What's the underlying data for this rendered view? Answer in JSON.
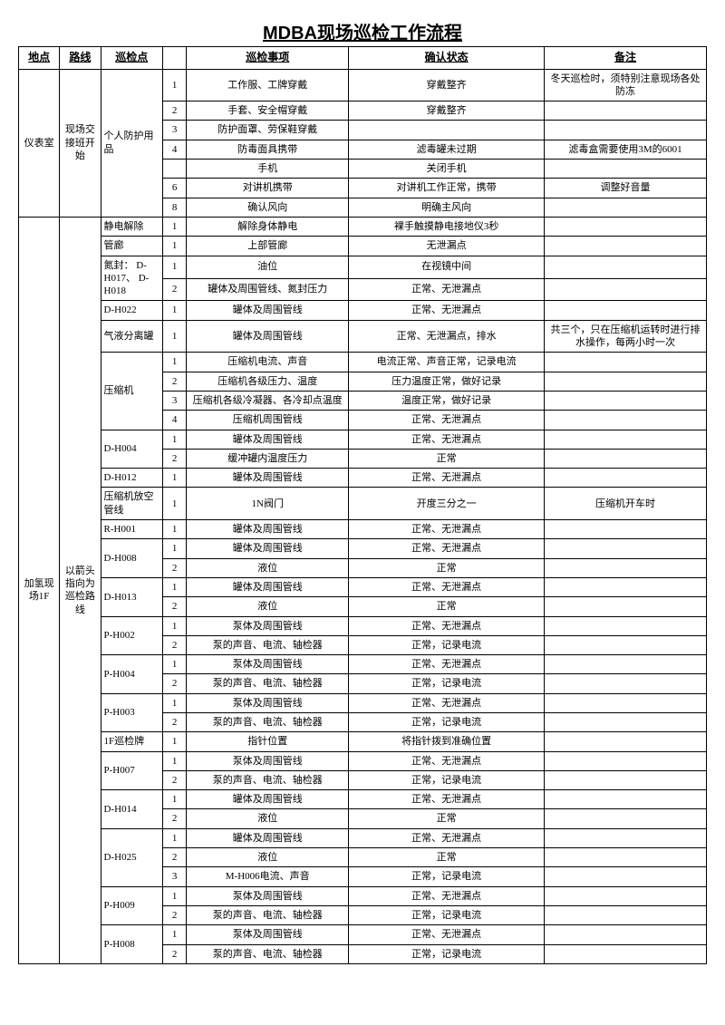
{
  "title": "MDBA现场巡检工作流程",
  "headers": [
    "地点",
    "路线",
    "巡检点",
    "",
    "巡检事项",
    "确认状态",
    "备注"
  ],
  "sections": [
    {
      "loc": "仪表室",
      "route": "现场交接班开始",
      "groups": [
        {
          "point": "个人防护用品",
          "rows": [
            {
              "n": "1",
              "item": "工作服、工牌穿戴",
              "status": "穿戴整齐",
              "note": "冬天巡检时，须特别注意现场各处防冻"
            },
            {
              "n": "2",
              "item": "手套、安全帽穿戴",
              "status": "穿戴整齐",
              "note": ""
            },
            {
              "n": "3",
              "item": "防护面罩、劳保鞋穿戴",
              "status": "",
              "note": ""
            },
            {
              "n": "4",
              "item": "防毒面具携带",
              "status": "滤毒罐未过期",
              "note": "滤毒盒需要使用3M的6001"
            },
            {
              "n": "",
              "item": "手机",
              "status": "关闭手机",
              "note": ""
            },
            {
              "n": "6",
              "item": "对讲机携带",
              "status": "对讲机工作正常，携带",
              "note": "调整好音量"
            },
            {
              "n": "8",
              "item": "确认风向",
              "status": "明确主风向",
              "note": ""
            }
          ]
        }
      ]
    },
    {
      "loc": "加氢现场1F",
      "route": "以箭头指向为巡检路线",
      "groups": [
        {
          "point": "静电解除",
          "rows": [
            {
              "n": "1",
              "item": "解除身体静电",
              "status": "裸手触摸静电接地仪3秒",
              "note": ""
            }
          ]
        },
        {
          "point": "管廊",
          "rows": [
            {
              "n": "1",
              "item": "上部管廊",
              "status": "无泄漏点",
              "note": ""
            }
          ]
        },
        {
          "point": "氮封：     D-H017、   D-H018",
          "rows": [
            {
              "n": "1",
              "item": "油位",
              "status": "在视镜中间",
              "note": ""
            },
            {
              "n": "2",
              "item": "罐体及周围管线、氮封压力",
              "status": "正常、无泄漏点",
              "note": ""
            }
          ]
        },
        {
          "point": "D-H022",
          "rows": [
            {
              "n": "1",
              "item": "罐体及周围管线",
              "status": "正常、无泄漏点",
              "note": ""
            }
          ]
        },
        {
          "point": "气液分离罐",
          "rows": [
            {
              "n": "1",
              "item": "罐体及周围管线",
              "status": "正常、无泄漏点，排水",
              "note": "共三个，只在压缩机运转时进行排水操作，每两小时一次"
            }
          ]
        },
        {
          "point": "压缩机",
          "rows": [
            {
              "n": "1",
              "item": "压缩机电流、声音",
              "status": "电流正常、声音正常，记录电流",
              "note": ""
            },
            {
              "n": "2",
              "item": "压缩机各级压力、温度",
              "status": "压力温度正常，做好记录",
              "note": ""
            },
            {
              "n": "3",
              "item": "压缩机各级冷凝器、各冷却点温度",
              "status": "温度正常，做好记录",
              "note": ""
            },
            {
              "n": "4",
              "item": "压缩机周围管线",
              "status": "正常、无泄漏点",
              "note": ""
            }
          ]
        },
        {
          "point": "D-H004",
          "rows": [
            {
              "n": "1",
              "item": "罐体及周围管线",
              "status": "正常、无泄漏点",
              "note": ""
            },
            {
              "n": "2",
              "item": "缓冲罐内温度压力",
              "status": "正常",
              "note": ""
            }
          ]
        },
        {
          "point": "D-H012",
          "rows": [
            {
              "n": "1",
              "item": "罐体及周围管线",
              "status": "正常、无泄漏点",
              "note": ""
            }
          ]
        },
        {
          "point": "压缩机放空管线",
          "rows": [
            {
              "n": "1",
              "item": "1N阀门",
              "status": "开度三分之一",
              "note": "压缩机开车时"
            }
          ]
        },
        {
          "point": "R-H001",
          "rows": [
            {
              "n": "1",
              "item": "罐体及周围管线",
              "status": "正常、无泄漏点",
              "note": ""
            }
          ]
        },
        {
          "point": "D-H008",
          "rows": [
            {
              "n": "1",
              "item": "罐体及周围管线",
              "status": "正常、无泄漏点",
              "note": ""
            },
            {
              "n": "2",
              "item": "液位",
              "status": "正常",
              "note": ""
            }
          ]
        },
        {
          "point": "D-H013",
          "rows": [
            {
              "n": "1",
              "item": "罐体及周围管线",
              "status": "正常、无泄漏点",
              "note": ""
            },
            {
              "n": "2",
              "item": "液位",
              "status": "正常",
              "note": ""
            }
          ]
        },
        {
          "point": "P-H002",
          "rows": [
            {
              "n": "1",
              "item": "泵体及周围管线",
              "status": "正常、无泄漏点",
              "note": ""
            },
            {
              "n": "2",
              "item": "泵的声音、电流、轴检器",
              "status": "正常，记录电流",
              "note": ""
            }
          ]
        },
        {
          "point": "P-H004",
          "rows": [
            {
              "n": "1",
              "item": "泵体及周围管线",
              "status": "正常、无泄漏点",
              "note": ""
            },
            {
              "n": "2",
              "item": "泵的声音、电流、轴检器",
              "status": "正常，记录电流",
              "note": ""
            }
          ]
        },
        {
          "point": "P-H003",
          "rows": [
            {
              "n": "1",
              "item": "泵体及周围管线",
              "status": "正常、无泄漏点",
              "note": ""
            },
            {
              "n": "2",
              "item": "泵的声音、电流、轴检器",
              "status": "正常，记录电流",
              "note": ""
            }
          ]
        },
        {
          "point": "1F巡检牌",
          "rows": [
            {
              "n": "1",
              "item": "指针位置",
              "status": "将指针拨到准确位置",
              "note": ""
            }
          ]
        },
        {
          "point": "P-H007",
          "rows": [
            {
              "n": "1",
              "item": "泵体及周围管线",
              "status": "正常、无泄漏点",
              "note": ""
            },
            {
              "n": "2",
              "item": "泵的声音、电流、轴检器",
              "status": "正常，记录电流",
              "note": ""
            }
          ]
        },
        {
          "point": "D-H014",
          "rows": [
            {
              "n": "1",
              "item": "罐体及周围管线",
              "status": "正常、无泄漏点",
              "note": ""
            },
            {
              "n": "2",
              "item": "液位",
              "status": "正常",
              "note": ""
            }
          ]
        },
        {
          "point": "D-H025",
          "rows": [
            {
              "n": "1",
              "item": "罐体及周围管线",
              "status": "正常、无泄漏点",
              "note": ""
            },
            {
              "n": "2",
              "item": "液位",
              "status": "正常",
              "note": ""
            },
            {
              "n": "3",
              "item": "M-H006电流、声音",
              "status": "正常，记录电流",
              "note": ""
            }
          ]
        },
        {
          "point": "P-H009",
          "rows": [
            {
              "n": "1",
              "item": "泵体及周围管线",
              "status": "正常、无泄漏点",
              "note": ""
            },
            {
              "n": "2",
              "item": "泵的声音、电流、轴检器",
              "status": "正常，记录电流",
              "note": ""
            }
          ]
        },
        {
          "point": "P-H008",
          "rows": [
            {
              "n": "1",
              "item": "泵体及周围管线",
              "status": "正常、无泄漏点",
              "note": ""
            },
            {
              "n": "2",
              "item": "泵的声音、电流、轴检器",
              "status": "正常，记录电流",
              "note": ""
            }
          ]
        }
      ]
    }
  ]
}
